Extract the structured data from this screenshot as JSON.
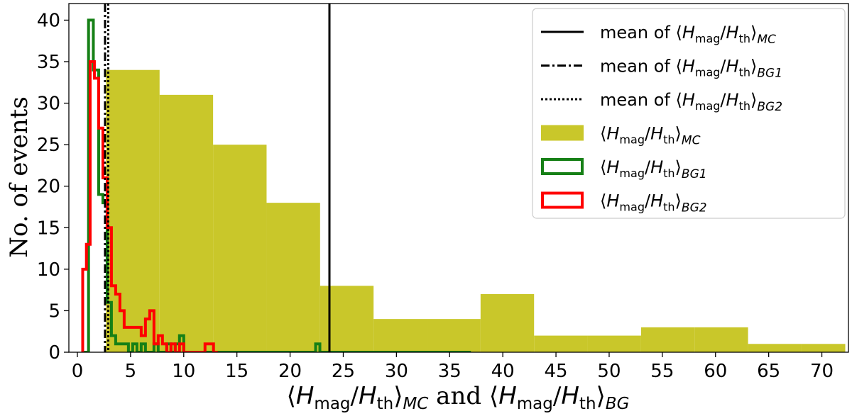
{
  "chart_data": {
    "type": "histogram",
    "xlabel_parts": {
      "bracket_open": "⟨",
      "H1": "H",
      "mag": "mag",
      "slash": "/",
      "H2": "H",
      "th": "th",
      "bracket_close": "⟩",
      "sub1": "MC",
      "and": " and ",
      "sub2": "BG"
    },
    "ylabel": "No. of events",
    "xlim": [
      -0.8,
      72.5
    ],
    "ylim": [
      0,
      42
    ],
    "xticks": [
      0,
      5,
      10,
      15,
      20,
      25,
      30,
      35,
      40,
      45,
      50,
      55,
      60,
      65,
      70
    ],
    "yticks": [
      0,
      5,
      10,
      15,
      20,
      25,
      30,
      35,
      40
    ],
    "colors": {
      "mc_fill": "#c9c72a",
      "bg1": "#168016",
      "bg2": "#ff0000",
      "mean_line": "#000000"
    },
    "series": [
      {
        "key": "mc",
        "style": "filled",
        "edges": [
          2.7,
          7.73,
          12.76,
          17.79,
          22.82,
          27.85,
          32.88,
          37.91,
          42.94,
          47.97,
          53.0,
          58.03,
          63.06,
          68.09,
          72.2
        ],
        "counts": [
          34,
          31,
          25,
          18,
          8,
          4,
          4,
          7,
          2,
          2,
          3,
          3,
          1,
          1
        ]
      },
      {
        "key": "bg1",
        "style": "step",
        "edges": [
          0.6,
          1.05,
          1.5,
          2.0,
          2.4,
          2.8,
          3.2,
          3.6,
          4.0,
          4.4,
          4.8,
          5.2,
          5.6,
          6.0,
          6.4,
          6.8,
          7.2,
          7.6,
          8.0,
          8.4,
          8.8,
          9.2,
          9.6,
          10.0,
          10.4,
          22.4,
          22.8,
          23.2,
          37.0
        ],
        "counts": [
          0,
          40,
          34,
          19,
          18,
          6,
          2,
          1,
          1,
          1,
          0,
          1,
          0,
          1,
          0,
          0,
          1,
          0,
          0,
          1,
          0,
          1,
          2,
          0,
          0,
          1,
          0,
          0
        ]
      },
      {
        "key": "bg2",
        "style": "step",
        "edges": [
          0.5,
          0.85,
          1.2,
          1.6,
          2.0,
          2.4,
          2.8,
          3.2,
          3.6,
          4.0,
          4.4,
          4.8,
          5.2,
          5.6,
          6.0,
          6.4,
          6.8,
          7.2,
          7.6,
          8.0,
          8.4,
          8.8,
          9.2,
          9.6,
          10.0,
          10.4,
          10.8,
          11.2,
          11.6,
          12.0,
          12.4,
          12.8,
          13.2
        ],
        "counts": [
          10,
          13,
          35,
          33,
          27,
          21,
          15,
          8,
          7,
          5,
          3,
          3,
          3,
          3,
          2,
          4,
          5,
          1,
          2,
          1,
          0,
          1,
          0,
          1,
          0,
          0,
          0,
          0,
          0,
          1,
          1,
          0
        ]
      }
    ],
    "mean_lines": [
      {
        "key": "mean_mc",
        "x": 23.7,
        "dash": "solid"
      },
      {
        "key": "mean_bg1",
        "x": 2.6,
        "dash": "dashdot"
      },
      {
        "key": "mean_bg2",
        "x": 2.9,
        "dash": "dotted"
      }
    ],
    "legend": {
      "placement": "top-right",
      "entries": [
        {
          "kind": "line",
          "dash": "solid",
          "prefix": "mean of ",
          "sub": "MC"
        },
        {
          "kind": "line",
          "dash": "dashdot",
          "prefix": "mean of ",
          "sub": "BG1"
        },
        {
          "kind": "line",
          "dash": "dotted",
          "prefix": "mean of ",
          "sub": "BG2"
        },
        {
          "kind": "patch",
          "series": "mc",
          "prefix": "",
          "sub": "MC"
        },
        {
          "kind": "outline",
          "series": "bg1",
          "prefix": "",
          "sub": "BG1"
        },
        {
          "kind": "outline",
          "series": "bg2",
          "prefix": "",
          "sub": "BG2"
        }
      ]
    }
  }
}
